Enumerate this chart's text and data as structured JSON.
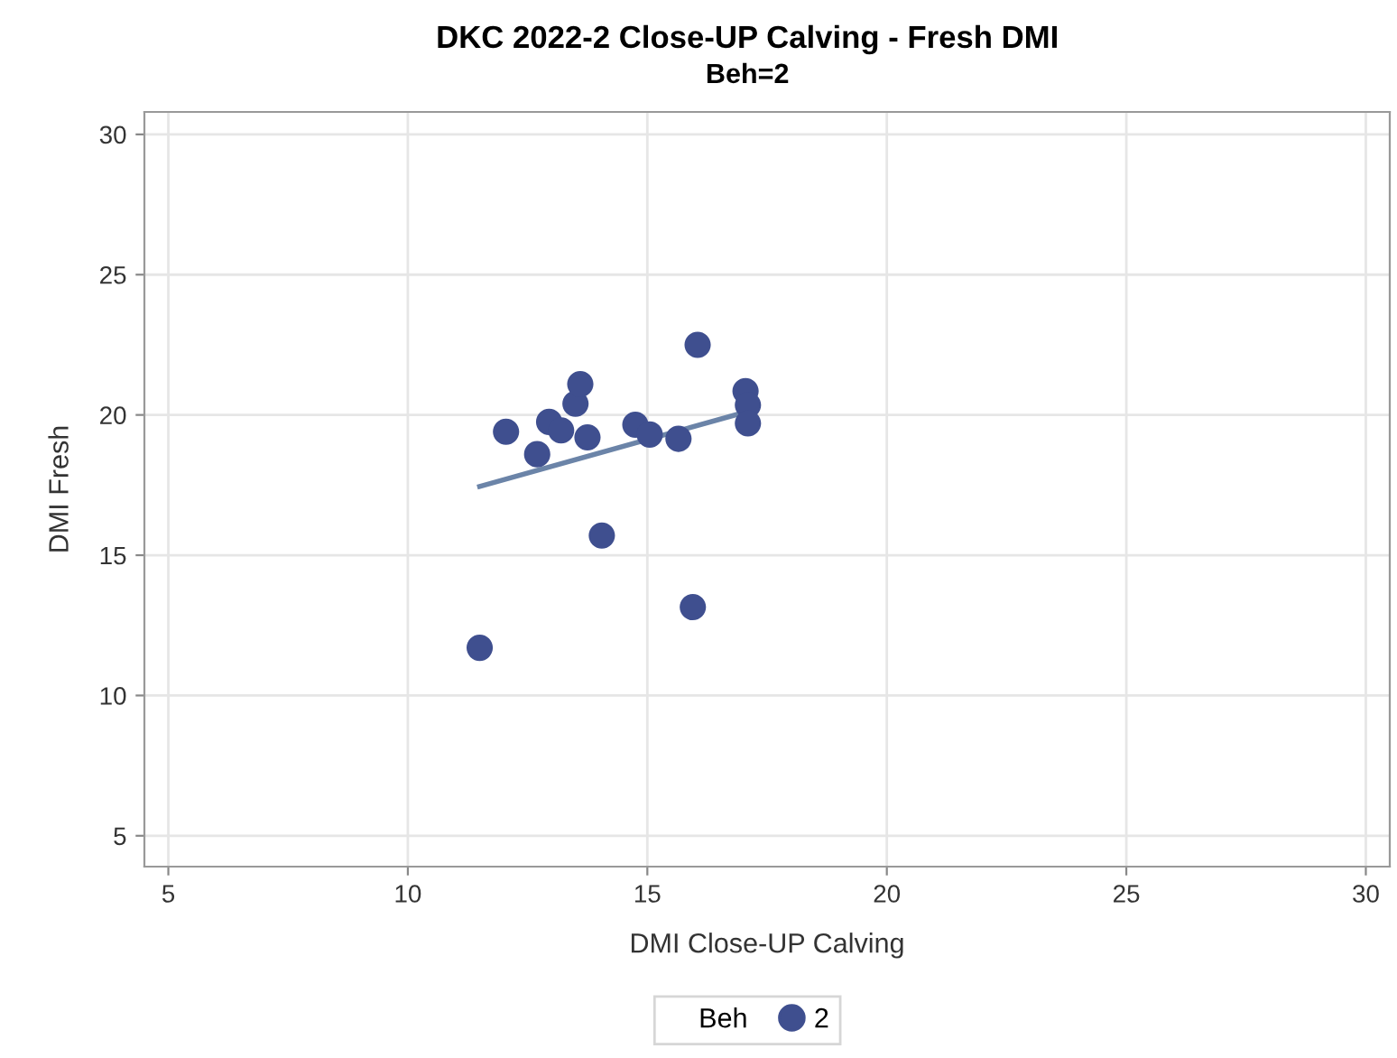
{
  "chart_data": {
    "type": "scatter",
    "title": "DKC 2022-2 Close-UP Calving - Fresh DMI",
    "subtitle": "Beh=2",
    "xlabel": "DMI Close-UP Calving",
    "ylabel": "DMI Fresh",
    "legend_title": "Beh",
    "series": [
      {
        "name": "2",
        "color": "#3f4f8f",
        "marker": "circle",
        "x": [
          11.5,
          12.05,
          12.7,
          12.95,
          13.2,
          13.5,
          13.6,
          13.75,
          14.05,
          14.75,
          15.05,
          15.65,
          15.95,
          16.05,
          17.05,
          17.1,
          17.1
        ],
        "values": [
          11.7,
          19.4,
          18.6,
          19.75,
          19.45,
          20.4,
          21.1,
          19.2,
          15.7,
          19.65,
          19.3,
          19.15,
          13.15,
          22.5,
          20.85,
          20.35,
          19.7
        ]
      },
      {
        "type": "line",
        "color": "#6b84a8",
        "x": [
          11.5,
          17.05
        ],
        "values": [
          17.45,
          20.1
        ]
      }
    ],
    "xlim": [
      4.5,
      30.5
    ],
    "xticks": [
      5,
      10,
      15,
      20,
      25,
      30
    ],
    "ylim": [
      3.9,
      30.8
    ],
    "yticks": [
      5,
      10,
      15,
      20,
      25,
      30
    ],
    "grid": true,
    "legend": "bottom"
  }
}
